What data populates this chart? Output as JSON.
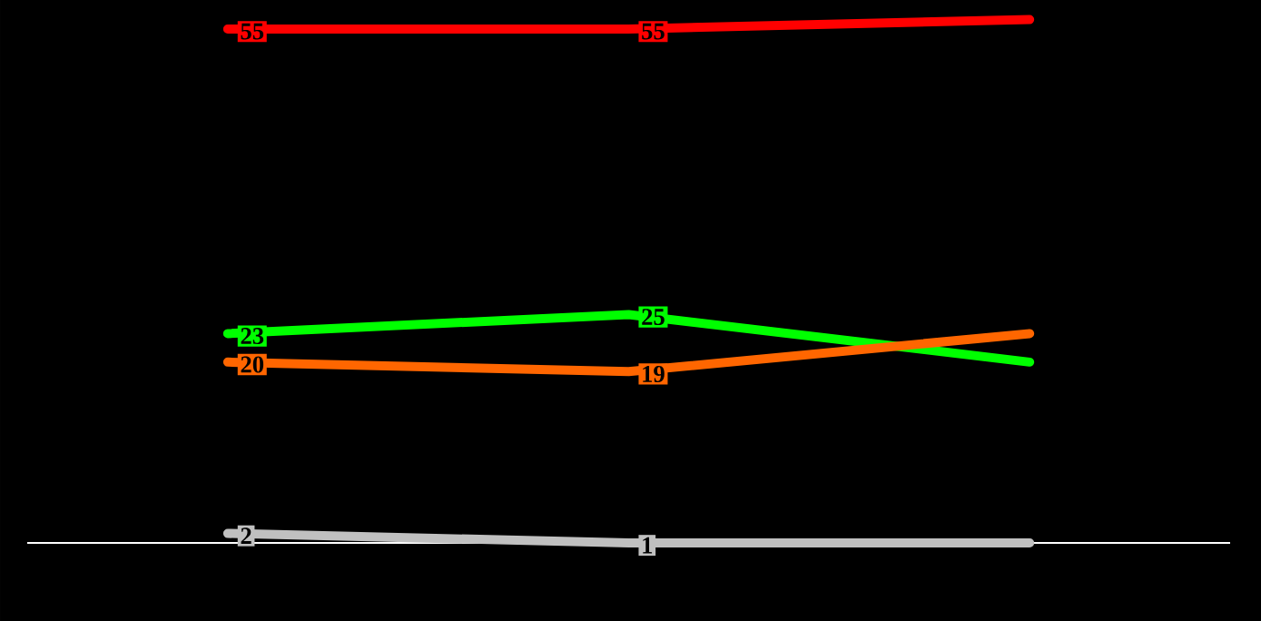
{
  "chart_data": {
    "type": "line",
    "categories": [
      null,
      null,
      null
    ],
    "line_style": "solid",
    "series": [
      {
        "color": "#ff0000",
        "values": [
          55,
          55,
          56
        ],
        "value_labels": [
          "55",
          "55",
          null
        ]
      },
      {
        "color": "#00ff00",
        "values": [
          23,
          25,
          20
        ],
        "value_labels": [
          "23",
          "25",
          null
        ]
      },
      {
        "color": "#ff6600",
        "values": [
          20,
          19,
          23
        ],
        "value_labels": [
          "20",
          "19",
          null
        ]
      },
      {
        "color": "#c0c0c0",
        "values": [
          2,
          1,
          1
        ],
        "value_labels": [
          "2",
          "1",
          null
        ]
      }
    ]
  }
}
